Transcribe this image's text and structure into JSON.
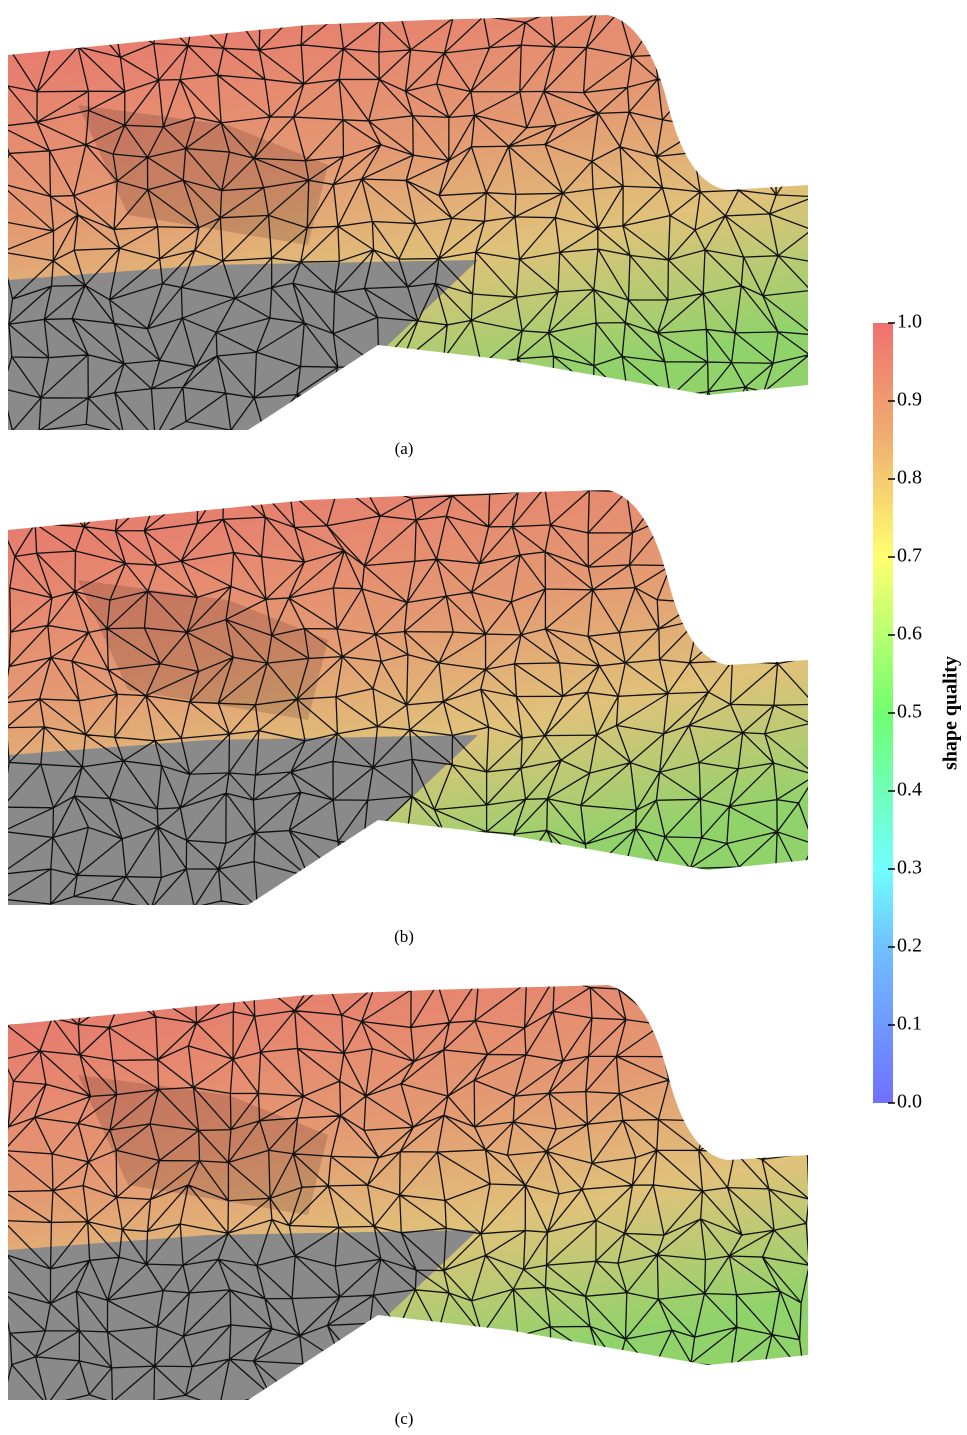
{
  "panels": [
    {
      "caption": "(a)"
    },
    {
      "caption": "(b)"
    },
    {
      "caption": "(c)"
    }
  ],
  "colorbar": {
    "label": "shape quality",
    "lim": [
      0,
      1
    ],
    "ticks": [
      {
        "value": 0,
        "label": "0.0"
      },
      {
        "value": 0.1,
        "label": "0.1"
      },
      {
        "value": 0.2,
        "label": "0.2"
      },
      {
        "value": 0.3,
        "label": "0.3"
      },
      {
        "value": 0.4,
        "label": "0.4"
      },
      {
        "value": 0.5,
        "label": "0.5"
      },
      {
        "value": 0.6,
        "label": "0.6"
      },
      {
        "value": 0.7,
        "label": "0.7"
      },
      {
        "value": 0.8,
        "label": "0.8"
      },
      {
        "value": 0.9,
        "label": "0.9"
      },
      {
        "value": 1,
        "label": "1.0"
      }
    ]
  }
}
